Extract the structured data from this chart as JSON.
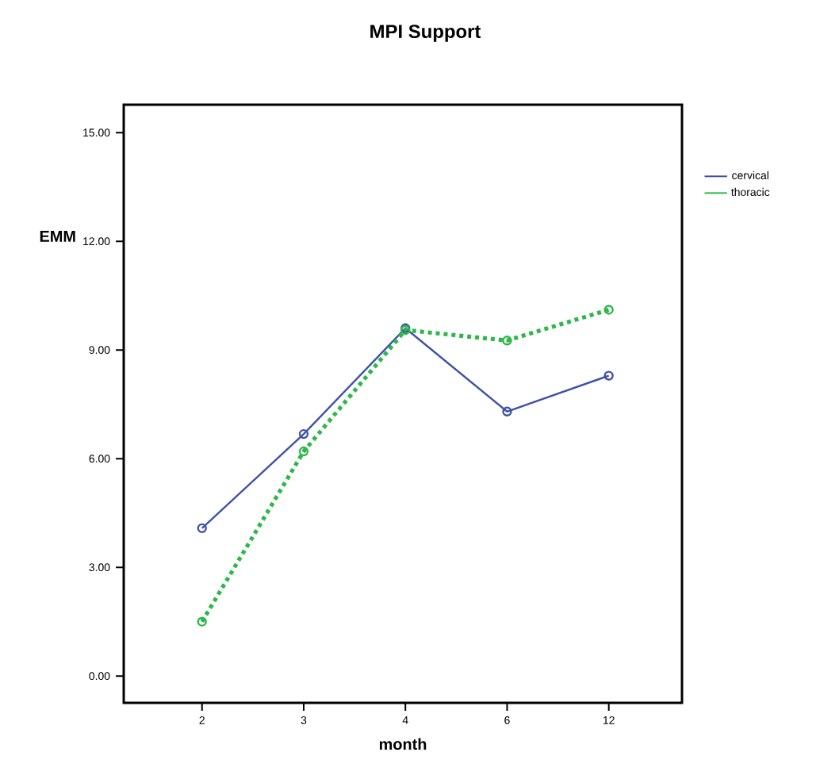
{
  "chart_data": {
    "type": "line",
    "title": "MPI Support",
    "xlabel": "month",
    "ylabel": "EMM",
    "categories": [
      "2",
      "3",
      "4",
      "6",
      "12"
    ],
    "series": [
      {
        "name": "cervical",
        "color": "#3f51a6",
        "values": [
          4.08,
          6.68,
          9.6,
          7.3,
          8.29
        ],
        "line_style": "solid"
      },
      {
        "name": "thoracic",
        "color": "#2db84a",
        "values": [
          1.5,
          6.2,
          9.55,
          9.26,
          10.11
        ],
        "line_style": "dotted"
      }
    ],
    "ylim": [
      -0.74,
      15.77
    ],
    "yticks": [
      {
        "value": 0,
        "label": "0.00"
      },
      {
        "value": 3,
        "label": "3.00"
      },
      {
        "value": 6,
        "label": "6.00"
      },
      {
        "value": 9,
        "label": "9.00"
      },
      {
        "value": 12,
        "label": "12.00"
      },
      {
        "value": 15,
        "label": "15.00"
      }
    ],
    "marker": "circle",
    "grid": false,
    "legend": "right"
  }
}
